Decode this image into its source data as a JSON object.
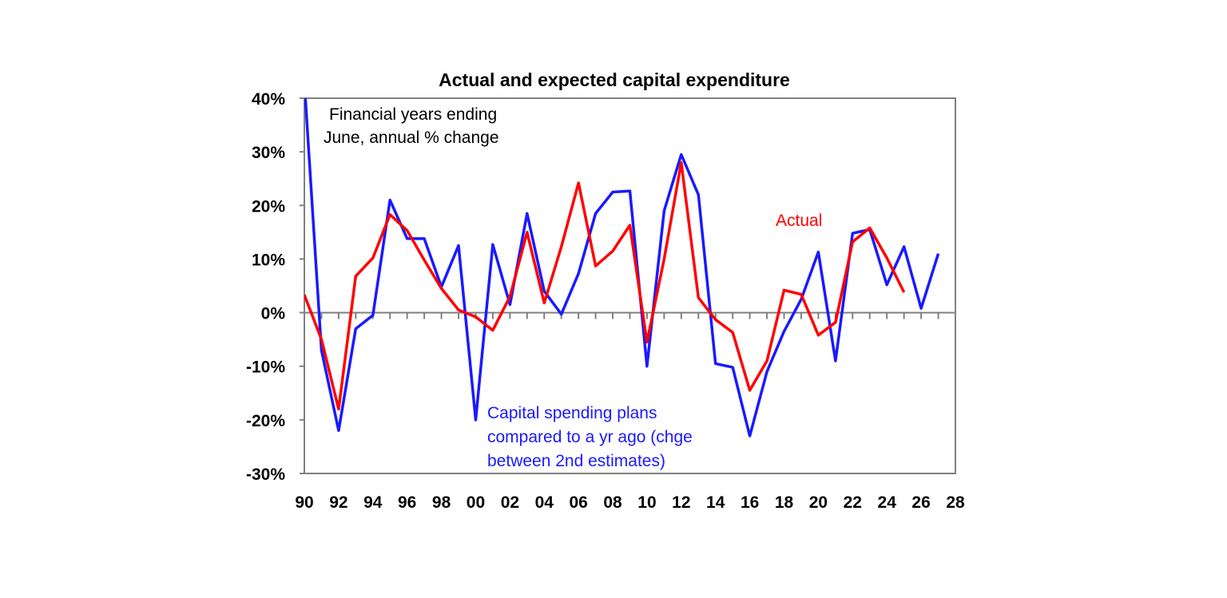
{
  "chart_data": {
    "type": "line",
    "title": "Actual and expected capital expenditure",
    "xlabel": "",
    "ylabel": "",
    "ylim": [
      -30,
      40
    ],
    "xlim": [
      1990,
      2028
    ],
    "yticks": [
      -30,
      -20,
      -10,
      0,
      10,
      20,
      30,
      40
    ],
    "ytick_labels": [
      "-30%",
      "-20%",
      "-10%",
      "0%",
      "10%",
      "20%",
      "30%",
      "40%"
    ],
    "xticks": [
      1990,
      1992,
      1994,
      1996,
      1998,
      2000,
      2002,
      2004,
      2006,
      2008,
      2010,
      2012,
      2014,
      2016,
      2018,
      2020,
      2022,
      2024,
      2026,
      2028
    ],
    "xtick_labels": [
      "90",
      "92",
      "94",
      "96",
      "98",
      "00",
      "02",
      "04",
      "06",
      "08",
      "10",
      "12",
      "14",
      "16",
      "18",
      "20",
      "22",
      "24",
      "26",
      "28"
    ],
    "grid": false,
    "series": [
      {
        "name": "Capital spending plans compared to a yr ago (chge between 2nd estimates)",
        "color": "#1a1aff",
        "x": [
          1990,
          1991,
          1992,
          1993,
          1994,
          1995,
          1996,
          1997,
          1998,
          1999,
          2000,
          2001,
          2002,
          2003,
          2004,
          2005,
          2006,
          2007,
          2008,
          2009,
          2010,
          2011,
          2012,
          2013,
          2014,
          2015,
          2016,
          2017,
          2018,
          2019,
          2020,
          2021,
          2022,
          2023,
          2024,
          2025,
          2026,
          2027
        ],
        "values": [
          43,
          -7,
          -22,
          -3,
          -0.5,
          21,
          13.8,
          13.8,
          4.8,
          12.5,
          -20,
          12.7,
          1.5,
          18.5,
          4,
          -0.3,
          7.3,
          18.5,
          22.5,
          22.7,
          -10,
          19,
          29.5,
          22,
          -9.5,
          -10.2,
          -23,
          -11,
          -3.5,
          2.5,
          11.3,
          -9,
          14.8,
          15.5,
          5.2,
          12.3,
          0.8,
          11
        ]
      },
      {
        "name": "Actual",
        "color": "#ff0000",
        "x": [
          1990,
          1991,
          1992,
          1993,
          1994,
          1995,
          1996,
          1997,
          1998,
          1999,
          2000,
          2001,
          2002,
          2003,
          2004,
          2005,
          2006,
          2007,
          2008,
          2009,
          2010,
          2011,
          2012,
          2013,
          2014,
          2015,
          2016,
          2017,
          2018,
          2019,
          2020,
          2021,
          2022,
          2023,
          2024,
          2025
        ],
        "values": [
          3.3,
          -5,
          -18,
          6.8,
          10.2,
          18.3,
          15.3,
          9.8,
          4.5,
          0.5,
          -0.8,
          -3.3,
          3,
          15,
          1.8,
          12.3,
          24.2,
          8.7,
          11.5,
          16.3,
          -5.5,
          10,
          28,
          2.8,
          -1.3,
          -3.7,
          -14.5,
          -9,
          4.2,
          3.4,
          -4.2,
          -1.8,
          13.2,
          15.8,
          10.2,
          3.8
        ]
      }
    ],
    "annotations": {
      "note_line1": "Financial years ending",
      "note_line2": "June, annual % change",
      "blue_line1": "Capital spending plans",
      "blue_line2": "compared to a yr ago (chge",
      "blue_line3": "between 2nd estimates)",
      "red_label": "Actual"
    }
  }
}
